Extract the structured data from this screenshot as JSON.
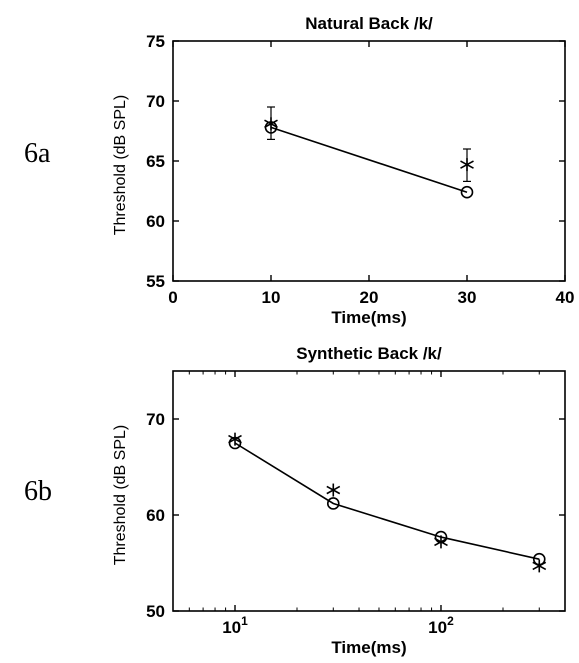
{
  "panel_labels": {
    "a": "6a",
    "b": "6b"
  },
  "chart_data": [
    {
      "type": "line",
      "title": "Natural Back /k/",
      "xlabel": "Time(ms)",
      "ylabel": "Threshold (dB SPL)",
      "xlim": [
        0,
        40
      ],
      "ylim": [
        55,
        75
      ],
      "xscale": "linear",
      "xticks": [
        0,
        10,
        20,
        30,
        40
      ],
      "xtick_labels": [
        "0",
        "10",
        "20",
        "30",
        "40"
      ],
      "yticks": [
        55,
        60,
        65,
        70,
        75
      ],
      "ytick_labels": [
        "55",
        "60",
        "65",
        "70",
        "75"
      ],
      "grid": false,
      "series": [
        {
          "marker": "circle",
          "line": true,
          "x": [
            10,
            30
          ],
          "y": [
            67.8,
            62.4
          ]
        },
        {
          "marker": "star",
          "line": false,
          "x": [
            10,
            30
          ],
          "y": [
            68.1,
            64.7
          ],
          "error": [
            [
              66.8,
              69.5
            ],
            [
              63.3,
              66.0
            ]
          ]
        }
      ]
    },
    {
      "type": "line",
      "title": "Synthetic Back /k/",
      "xlabel": "Time(ms)",
      "ylabel": "Threshold (dB SPL)",
      "xlim": [
        5,
        400
      ],
      "ylim": [
        50,
        75
      ],
      "xscale": "log",
      "xticks": [
        10,
        100
      ],
      "xtick_labels": [
        {
          "base": "10",
          "exp": "1"
        },
        {
          "base": "10",
          "exp": "2"
        }
      ],
      "yticks": [
        50,
        60,
        70
      ],
      "ytick_labels": [
        "50",
        "60",
        "70"
      ],
      "grid": false,
      "series": [
        {
          "marker": "circle",
          "line": true,
          "x": [
            10,
            30,
            100,
            300
          ],
          "y": [
            67.5,
            61.2,
            57.7,
            55.4
          ]
        },
        {
          "marker": "star",
          "line": false,
          "x": [
            10,
            30,
            100,
            300
          ],
          "y": [
            67.9,
            62.6,
            57.2,
            54.7
          ]
        }
      ]
    }
  ]
}
